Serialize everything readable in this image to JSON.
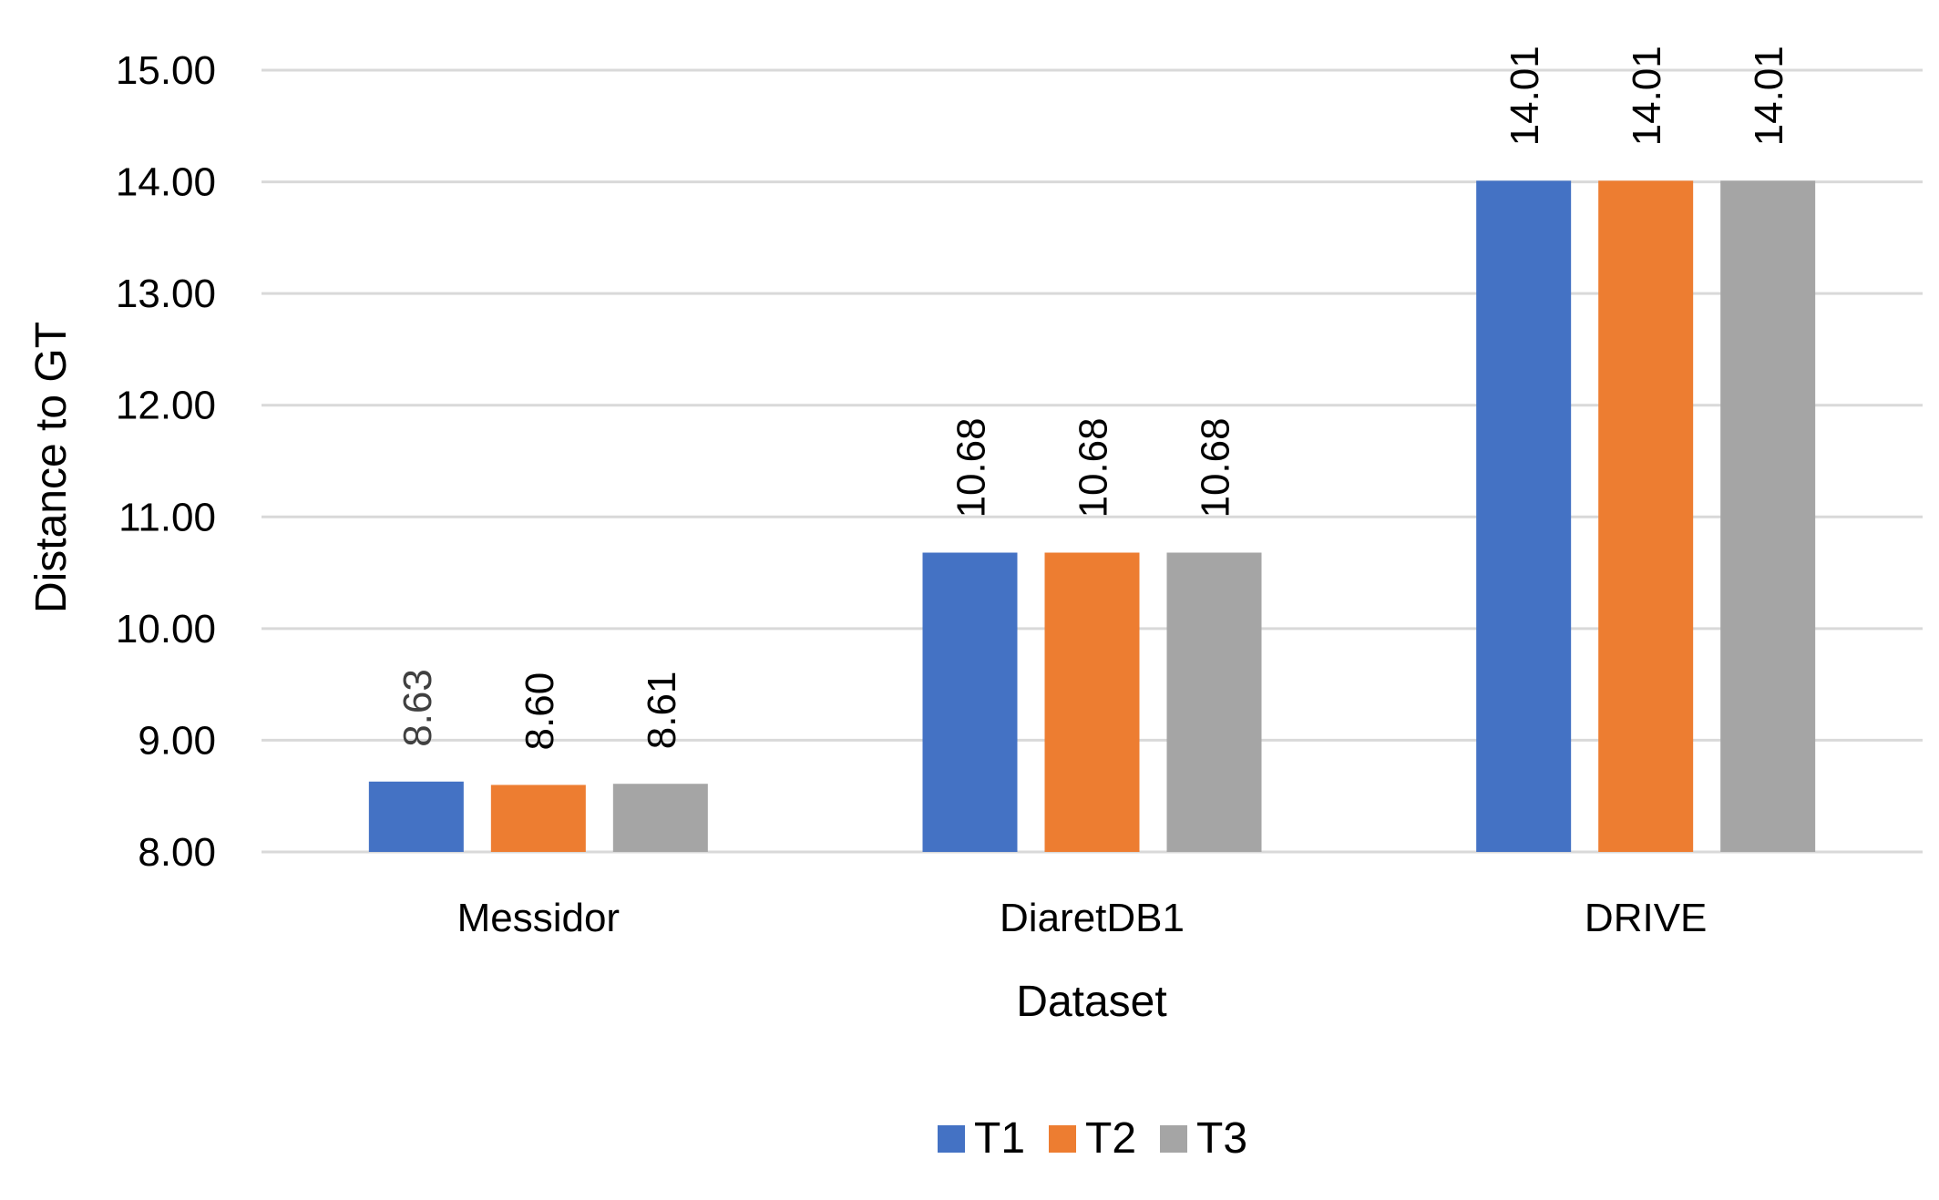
{
  "chart_data": {
    "type": "bar",
    "categories": [
      "Messidor",
      "DiaretDB1",
      "DRIVE"
    ],
    "series": [
      {
        "name": "T1",
        "values": [
          8.63,
          10.68,
          14.01
        ],
        "color": "#4472C4"
      },
      {
        "name": "T2",
        "values": [
          8.6,
          10.68,
          14.01
        ],
        "color": "#ED7D31"
      },
      {
        "name": "T3",
        "values": [
          8.61,
          10.68,
          14.01
        ],
        "color": "#A5A5A5"
      }
    ],
    "data_labels": [
      [
        "8.63",
        "10.68",
        "14.01"
      ],
      [
        "8.60",
        "10.68",
        "14.01"
      ],
      [
        "8.61",
        "10.68",
        "14.01"
      ]
    ],
    "yticks": [
      "8.00",
      "9.00",
      "10.00",
      "11.00",
      "12.00",
      "13.00",
      "14.00",
      "15.00"
    ],
    "ylim": [
      8,
      15
    ],
    "xlabel": "Dataset",
    "ylabel": "Distance to GT",
    "title": "",
    "grid": true,
    "legend_position": "bottom",
    "gridline_color": "#D9D9D9"
  }
}
